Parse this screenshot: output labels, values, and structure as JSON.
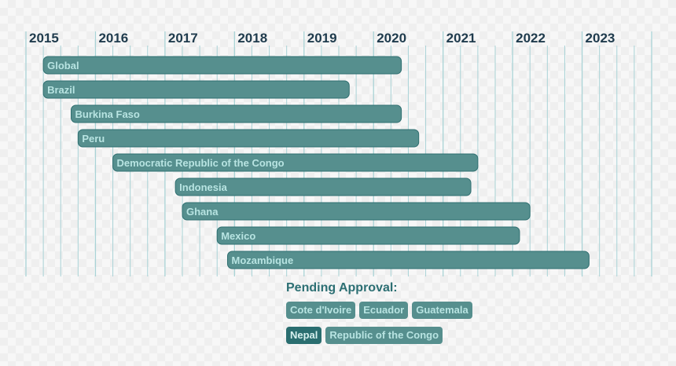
{
  "chart_data": {
    "type": "gantt",
    "title": "",
    "years": [
      "2015",
      "2016",
      "2017",
      "2018",
      "2019",
      "2020",
      "2021",
      "2022",
      "2023"
    ],
    "xlim": [
      2014.75,
      2023.75
    ],
    "bars": [
      {
        "label": "Global",
        "start": 2015.0,
        "end": 2020.15
      },
      {
        "label": "Brazil",
        "start": 2015.0,
        "end": 2019.4
      },
      {
        "label": "Burkina Faso",
        "start": 2015.4,
        "end": 2020.15
      },
      {
        "label": "Peru",
        "start": 2015.5,
        "end": 2020.4
      },
      {
        "label": "Democratic Republic of the Congo",
        "start": 2016.0,
        "end": 2021.25
      },
      {
        "label": "Indonesia",
        "start": 2016.9,
        "end": 2021.15
      },
      {
        "label": "Ghana",
        "start": 2017.0,
        "end": 2022.0
      },
      {
        "label": "Mexico",
        "start": 2017.5,
        "end": 2021.85
      },
      {
        "label": "Mozambique",
        "start": 2017.65,
        "end": 2022.85
      }
    ],
    "colors": {
      "bar": "#568f8e",
      "bar_edge": "#2f6f70",
      "gridline": "#a9d3d6",
      "year_text": "#1f3b4d",
      "bar_text": "#b8e4e2"
    }
  },
  "pending": {
    "title": "Pending Approval:",
    "rows": [
      [
        {
          "label": "Cote d'Ivoire",
          "style": "light"
        },
        {
          "label": "Ecuador",
          "style": "light"
        },
        {
          "label": "Guatemala",
          "style": "light"
        }
      ],
      [
        {
          "label": "Nepal",
          "style": "dark"
        },
        {
          "label": "Republic of the Congo",
          "style": "light"
        }
      ]
    ]
  }
}
